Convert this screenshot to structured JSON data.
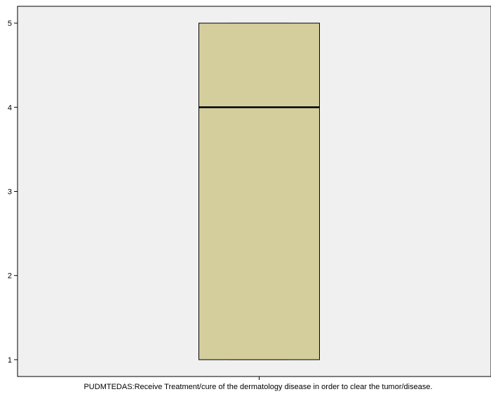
{
  "chart_data": {
    "type": "boxplot",
    "xlabel": "PUDMTEDAS:Receive Treatment/cure of the dermatology disease in order to clear the tumor/disease.",
    "ylabel": "",
    "ylim": [
      0.8,
      5.2
    ],
    "yticks": [
      "1",
      "2",
      "3",
      "4",
      "5"
    ],
    "grid": false,
    "series": [
      {
        "min": 1,
        "q1": 1,
        "median": 4,
        "q3": 5,
        "max": 5
      }
    ],
    "colors": {
      "box_fill": "#d3ce9c",
      "plot_background": "#f0f0f0",
      "line": "#000000"
    }
  }
}
